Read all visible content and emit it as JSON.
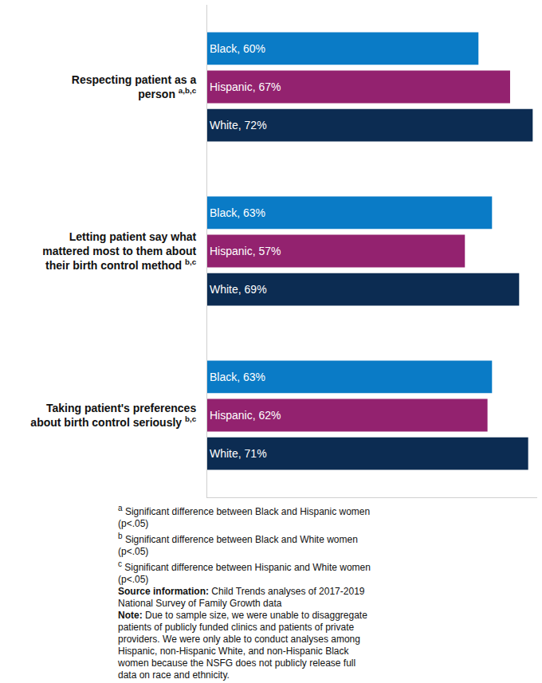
{
  "chart_data": {
    "type": "bar",
    "orientation": "horizontal",
    "categories": [
      "Respecting patient as a person",
      "Letting patient say what mattered most to them about their birth control method",
      "Taking patient's preferences about birth control seriously"
    ],
    "category_notes": [
      "a,b,c",
      "b,c",
      "b,c"
    ],
    "series": [
      {
        "name": "Black",
        "color": "#0a7bc6",
        "values": [
          60,
          63,
          63
        ],
        "value_labels": [
          "Black, 60%",
          "Black, 63%",
          "Black, 63%"
        ]
      },
      {
        "name": "Hispanic",
        "color": "#93226f",
        "values": [
          67,
          57,
          62
        ],
        "value_labels": [
          "Hispanic, 67%",
          "Hispanic, 57%",
          "Hispanic, 62%"
        ]
      },
      {
        "name": "White",
        "color": "#0c2c52",
        "values": [
          72,
          69,
          71
        ],
        "value_labels": [
          "White, 72%",
          "White, 69%",
          "White, 71%"
        ]
      }
    ],
    "xlim": [
      0,
      73
    ],
    "tick_labels": "y",
    "data_labels": true,
    "grid": false,
    "footnotes": [
      {
        "mark": "a",
        "text": "Significant difference between Black and Hispanic women (p<.05)"
      },
      {
        "mark": "b",
        "text": "Significant difference between Black and White women (p<.05)"
      },
      {
        "mark": "c",
        "text": "Significant difference between Hispanic and White women (p<.05)"
      }
    ],
    "source": {
      "label": "Source information:",
      "text": "Child Trends analyses of 2017-2019 National Survey of Family Growth data"
    },
    "note": {
      "label": "Note:",
      "text": "Due to sample size, we were unable to disaggregate patients of publicly funded clinics and patients of private providers. We were only able to conduct analyses among Hispanic, non-Hispanic White, and non-Hispanic Black women because the NSFG does not publicly release full data on race and ethnicity."
    }
  }
}
